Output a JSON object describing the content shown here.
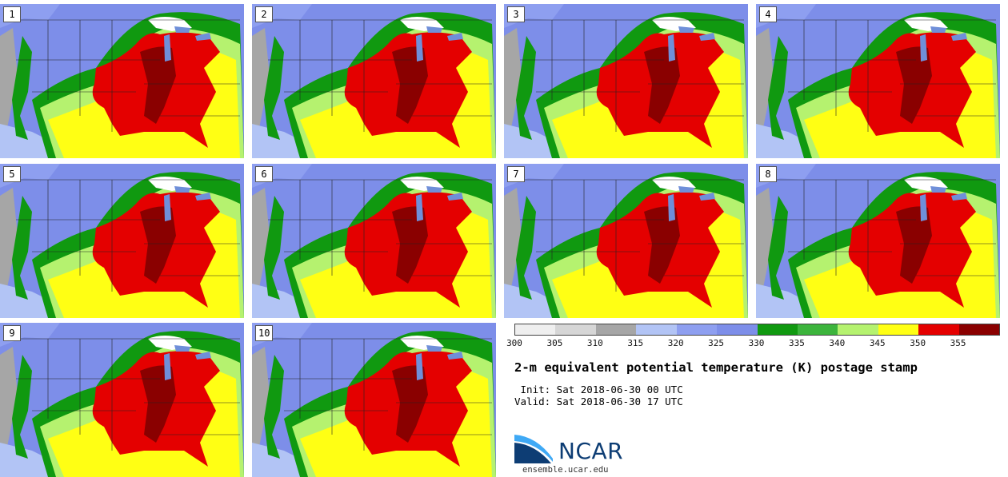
{
  "panels": [
    {
      "label": "1"
    },
    {
      "label": "2"
    },
    {
      "label": "3"
    },
    {
      "label": "4"
    },
    {
      "label": "5"
    },
    {
      "label": "6"
    },
    {
      "label": "7"
    },
    {
      "label": "8"
    },
    {
      "label": "9"
    },
    {
      "label": "10"
    }
  ],
  "legend": {
    "colors": [
      "#efefef",
      "#d6d6d6",
      "#a6a6a6",
      "#b2c4f5",
      "#8e9ff0",
      "#7d8ee9",
      "#109910",
      "#3cb43c",
      "#b5f26f",
      "#ffff14",
      "#e40000",
      "#8a0000"
    ],
    "ticks": [
      "300",
      "305",
      "310",
      "315",
      "320",
      "325",
      "330",
      "335",
      "340",
      "345",
      "350",
      "355"
    ]
  },
  "title": "2-m equivalent potential temperature (K) postage stamp",
  "init": " Init: Sat 2018-06-30 00 UTC",
  "valid": "Valid: Sat 2018-06-30 17 UTC",
  "logo": {
    "name": "NCAR",
    "colors": {
      "dark": "#0d3d74",
      "light": "#3fa9f5"
    }
  },
  "url": "ensemble.ucar.edu"
}
